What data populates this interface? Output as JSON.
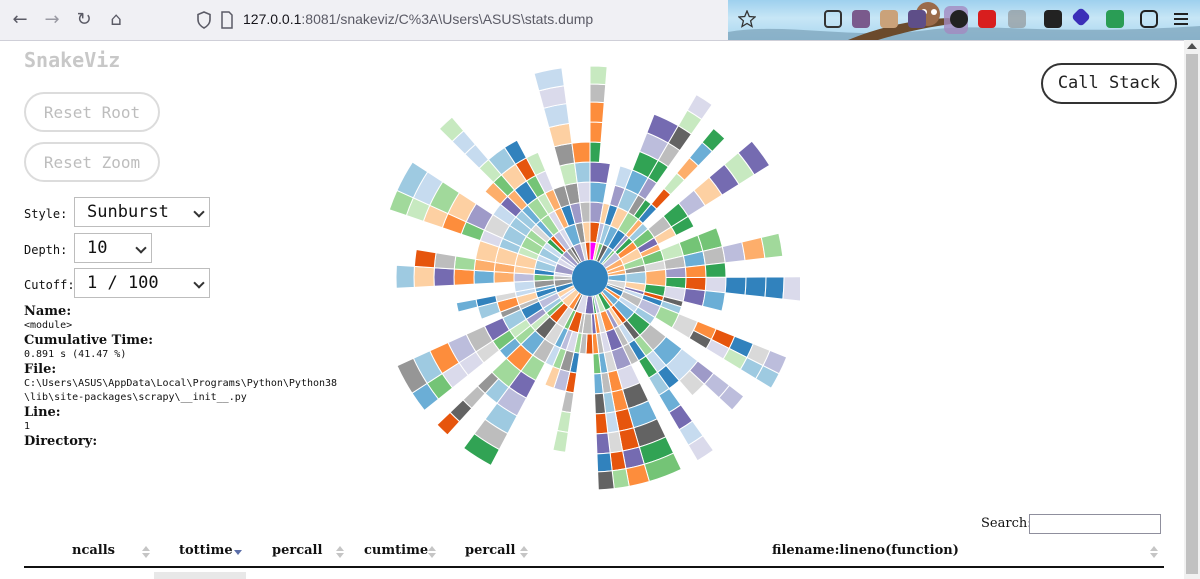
{
  "browser": {
    "url_host": "127.0.0.1",
    "url_path": ":8081/snakeviz/C%3A\\Users\\ASUS\\stats.dump"
  },
  "app": {
    "logo": "SnakeViz",
    "reset_root": "Reset Root",
    "reset_zoom": "Reset Zoom",
    "call_stack": "Call Stack"
  },
  "controls": {
    "style_label": "Style:",
    "style_value": "Sunburst",
    "depth_label": "Depth:",
    "depth_value": "10",
    "cutoff_label": "Cutoff:",
    "cutoff_value": "1 / 100"
  },
  "info": {
    "name_label": "Name:",
    "name_value": "<module>",
    "cumtime_label": "Cumulative Time:",
    "cumtime_value": "0.891 s (41.47 %)",
    "file_label": "File:",
    "file_value": "C:\\Users\\ASUS\\AppData\\Local\\Programs\\Python\\Python38\n\\lib\\site-packages\\scrapy\\__init__.py",
    "line_label": "Line:",
    "line_value": "1",
    "directory_label": "Directory:"
  },
  "search": {
    "label": "Search:",
    "value": ""
  },
  "table": {
    "columns": [
      "ncalls",
      "tottime",
      "percall",
      "cumtime",
      "percall",
      "filename:lineno(function)"
    ],
    "sorted_column": "tottime"
  },
  "colors": {
    "center": "#3182bd",
    "highlight": "#ff00ff",
    "palette": [
      "#3182bd",
      "#6baed6",
      "#9ecae1",
      "#c6dbef",
      "#e6550d",
      "#fd8d3c",
      "#fdae6b",
      "#fdd0a2",
      "#31a354",
      "#74c476",
      "#a1d99b",
      "#c7e9c0",
      "#756bb1",
      "#9e9ac8",
      "#bcbddc",
      "#dadaeb",
      "#636363",
      "#969696",
      "#bdbdbd",
      "#d9d9d9"
    ]
  }
}
